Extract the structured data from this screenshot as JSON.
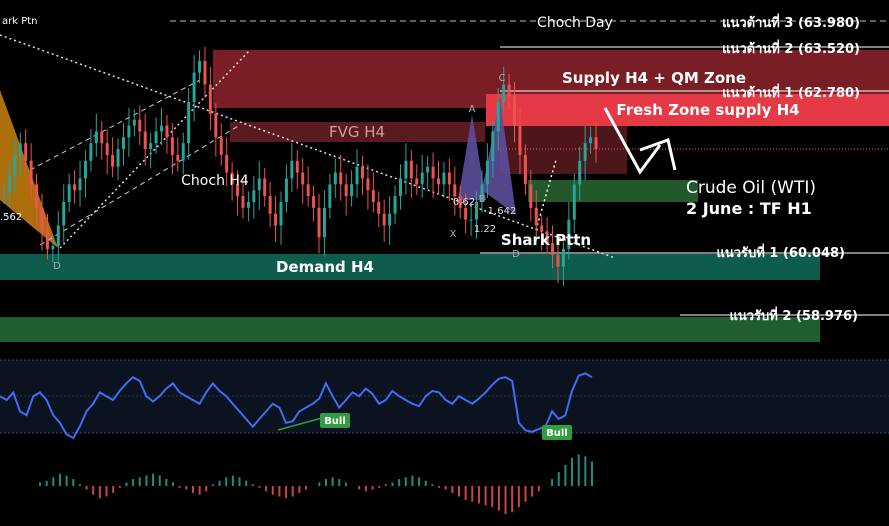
{
  "chart_data": {
    "type": "candlestick",
    "instrument": "Crude Oil (WTI)",
    "subtitle": "2 June : TF H1",
    "levels": [
      {
        "label": "แนวต้านที่ 3 (63.980)",
        "value": 63.98
      },
      {
        "label": "แนวต้านที่ 2 (63.520)",
        "value": 63.52
      },
      {
        "label": "แนวต้านที่ 1 (62.780)",
        "value": 62.78
      },
      {
        "label": "แนวรับที่ 1 (60.048)",
        "value": 60.048
      },
      {
        "label": "แนวรับที่ 2  (58.976)",
        "value": 58.976
      }
    ],
    "annotations": {
      "choch_day": "Choch Day",
      "choch_h4": "Choch H4",
      "fvg_h4": "FVG H4",
      "supply_qm": "Supply H4 + QM Zone",
      "fresh_supply": "Fresh Zone supply H4",
      "demand_h4": "Demand H4",
      "shark_pattern": "Shark Pttn",
      "shark_pattern_top": "ark Ptn",
      "ratio_left": ".562",
      "pivot_d_left": "D",
      "pivot_d_right": "D",
      "pivot_x": "X",
      "pivot_a": "A",
      "pivot_b": "B",
      "pivot_c": "C",
      "ratio_b": "0.62",
      "ratio_c": "1.22",
      "ratio_d": "1.642"
    },
    "close_series": [
      61.05,
      61.35,
      61.7,
      61.9,
      61.6,
      61.2,
      60.8,
      60.4,
      60.1,
      60.15,
      60.5,
      60.9,
      61.2,
      61.1,
      61.3,
      61.6,
      61.9,
      62.1,
      61.9,
      61.7,
      61.5,
      61.8,
      62.0,
      62.2,
      62.3,
      62.1,
      61.8,
      61.9,
      62.1,
      62.2,
      62.0,
      61.7,
      61.6,
      61.9,
      62.6,
      63.1,
      63.3,
      62.9,
      62.4,
      62.0,
      61.7,
      61.4,
      61.2,
      61.0,
      60.8,
      60.9,
      61.1,
      61.3,
      61.0,
      60.7,
      60.5,
      60.9,
      61.3,
      61.6,
      61.4,
      61.2,
      61.0,
      60.8,
      60.3,
      60.8,
      61.2,
      61.4,
      61.2,
      61.0,
      61.2,
      61.5,
      61.3,
      61.1,
      60.9,
      60.7,
      60.5,
      60.7,
      61.0,
      61.3,
      61.6,
      61.3,
      61.2,
      61.4,
      61.5,
      61.3,
      61.2,
      61.4,
      61.2,
      61.0,
      60.8,
      60.6,
      60.6,
      60.9,
      61.2,
      61.6,
      62.1,
      62.6,
      62.9,
      62.7,
      62.2,
      61.7,
      61.2,
      60.8,
      60.5,
      60.4,
      60.2,
      60.0,
      59.8,
      60.1,
      60.6,
      61.2,
      61.6,
      61.9,
      62.0,
      61.8
    ],
    "indicator_oscillator": {
      "values": [
        0.55,
        0.5,
        0.6,
        0.35,
        0.3,
        0.55,
        0.6,
        0.5,
        0.3,
        0.2,
        0.05,
        0.0,
        0.15,
        0.35,
        0.45,
        0.6,
        0.55,
        0.5,
        0.62,
        0.72,
        0.8,
        0.75,
        0.55,
        0.48,
        0.55,
        0.65,
        0.72,
        0.6,
        0.55,
        0.5,
        0.45,
        0.6,
        0.72,
        0.62,
        0.55,
        0.45,
        0.35,
        0.25,
        0.15,
        0.25,
        0.35,
        0.45,
        0.4,
        0.2,
        0.22,
        0.35,
        0.4,
        0.45,
        0.52,
        0.72,
        0.55,
        0.4,
        0.5,
        0.6,
        0.55,
        0.65,
        0.58,
        0.45,
        0.5,
        0.62,
        0.55,
        0.5,
        0.45,
        0.42,
        0.55,
        0.62,
        0.6,
        0.5,
        0.45,
        0.55,
        0.5,
        0.45,
        0.52,
        0.6,
        0.7,
        0.78,
        0.8,
        0.75,
        0.2,
        0.1,
        0.08,
        0.12,
        0.15,
        0.35,
        0.25,
        0.3,
        0.62,
        0.82,
        0.85,
        0.8
      ],
      "labels": [
        "Bull",
        "Bull"
      ]
    },
    "indicator_histogram": {
      "values": [
        0.1,
        0.15,
        0.25,
        0.35,
        0.3,
        0.2,
        0.05,
        -0.1,
        -0.25,
        -0.35,
        -0.3,
        -0.2,
        -0.05,
        0.1,
        0.2,
        0.25,
        0.3,
        0.35,
        0.3,
        0.2,
        0.1,
        -0.05,
        -0.1,
        -0.2,
        -0.25,
        -0.15,
        0.05,
        0.15,
        0.25,
        0.3,
        0.25,
        0.15,
        0.05,
        -0.05,
        -0.15,
        -0.25,
        -0.3,
        -0.35,
        -0.3,
        -0.2,
        -0.1,
        0.0,
        0.1,
        0.2,
        0.25,
        0.2,
        0.1,
        0.0,
        -0.1,
        -0.15,
        -0.1,
        -0.05,
        0.05,
        0.1,
        0.2,
        0.25,
        0.3,
        0.25,
        0.15,
        0.05,
        -0.05,
        -0.1,
        -0.2,
        -0.3,
        -0.4,
        -0.45,
        -0.5,
        -0.55,
        -0.6,
        -0.7,
        -0.8,
        -0.75,
        -0.6,
        -0.45,
        -0.3,
        -0.15,
        0.0,
        0.2,
        0.4,
        0.6,
        0.8,
        0.9,
        0.85,
        0.7
      ],
      "positive_color": "#26a69a",
      "negative_color": "#ef5350"
    },
    "grid": false
  },
  "colors": {
    "background": "#000000",
    "supply_zone": "#7a1e25",
    "fresh_supply": "#e63946",
    "fvg": "#5a1a20",
    "demand_zone": "#0d5c4d",
    "support_zone": "#1f5e2e",
    "green_zone": "#22582a",
    "bull_candle": "#26a69a",
    "bear_candle": "#ef5350",
    "pattern_fill": "#5d4e9a",
    "harmonic_left": "#c07a10",
    "oscillator_line": "#3d6ef5",
    "bull_label": "#2e9e40"
  }
}
